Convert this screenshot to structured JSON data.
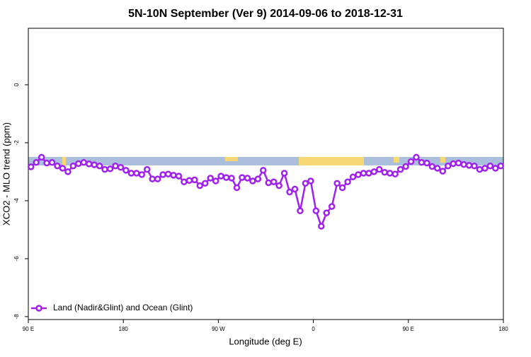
{
  "chart_data": {
    "type": "line",
    "title": "5N-10N September (Ver 9)   2014-09-06 to 2018-12-31",
    "x_label": "Longitude (deg E)",
    "y_label": "XCO2 - MLO trend (ppm)",
    "x": [
      92.5,
      97.5,
      102.5,
      107.5,
      112.5,
      117.5,
      122.5,
      127.5,
      132.5,
      137.5,
      142.5,
      147.5,
      152.5,
      157.5,
      162.5,
      167.5,
      172.5,
      177.5,
      182.5,
      187.5,
      192.5,
      197.5,
      202.5,
      207.5,
      212.5,
      217.5,
      222.5,
      227.5,
      232.5,
      237.5,
      242.5,
      247.5,
      252.5,
      257.5,
      262.5,
      267.5,
      272.5,
      277.5,
      282.5,
      287.5,
      292.5,
      297.5,
      302.5,
      307.5,
      312.5,
      317.5,
      322.5,
      327.5,
      332.5,
      337.5,
      342.5,
      347.5,
      352.5,
      357.5,
      362.5,
      367.5,
      372.5,
      377.5,
      382.5,
      387.5,
      392.5,
      397.5,
      402.5,
      407.5,
      412.5,
      417.5,
      422.5,
      427.5,
      432.5,
      437.5,
      442.5,
      447.5,
      452.5,
      457.5,
      462.5,
      467.5,
      472.5,
      477.5,
      482.5,
      487.5,
      492.5,
      497.5,
      502.5,
      507.5,
      512.5,
      517.5,
      522.5,
      527.5,
      532.5,
      537.5
    ],
    "series": [
      {
        "name": "Land (Nadir&Glint) and Ocean (Glint)",
        "color": "#a020f0",
        "values": [
          -2.83,
          -2.68,
          -2.5,
          -2.7,
          -2.68,
          -2.8,
          -2.88,
          -3.0,
          -2.8,
          -2.72,
          -2.68,
          -2.73,
          -2.76,
          -2.8,
          -2.92,
          -2.9,
          -2.8,
          -2.85,
          -2.95,
          -3.05,
          -3.05,
          -3.1,
          -2.92,
          -3.25,
          -3.25,
          -3.1,
          -3.08,
          -3.12,
          -3.15,
          -3.35,
          -3.3,
          -3.28,
          -3.48,
          -3.4,
          -3.22,
          -3.32,
          -3.15,
          -3.2,
          -3.22,
          -3.55,
          -3.2,
          -3.22,
          -3.32,
          -3.25,
          -2.95,
          -3.38,
          -3.35,
          -3.48,
          -3.05,
          -3.7,
          -3.6,
          -4.35,
          -3.4,
          -3.32,
          -4.35,
          -4.88,
          -4.42,
          -4.2,
          -3.4,
          -3.55,
          -3.35,
          -3.18,
          -3.1,
          -3.05,
          -3.05,
          -3.0,
          -2.92,
          -3.02,
          -3.05,
          -3.08,
          -2.92,
          -2.82,
          -2.65,
          -2.5,
          -2.68,
          -2.7,
          -2.82,
          -2.88,
          -2.98,
          -2.8,
          -2.72,
          -2.7,
          -2.75,
          -2.78,
          -2.8,
          -2.92,
          -2.88,
          -2.8,
          -2.88,
          -2.8
        ]
      }
    ],
    "xlim": [
      90,
      540
    ],
    "xticks": [
      {
        "value": 90,
        "label": "90 E"
      },
      180,
      {
        "value": 270,
        "label": "90 W"
      },
      {
        "value": 360,
        "label": "0"
      },
      {
        "value": 450,
        "label": "90 E"
      },
      {
        "value": 540,
        "label": "180"
      }
    ],
    "ylim": [
      -8.1,
      1.95
    ],
    "yticks": [
      -8,
      -6,
      -4,
      -2,
      0
    ],
    "legend": "lower left"
  }
}
